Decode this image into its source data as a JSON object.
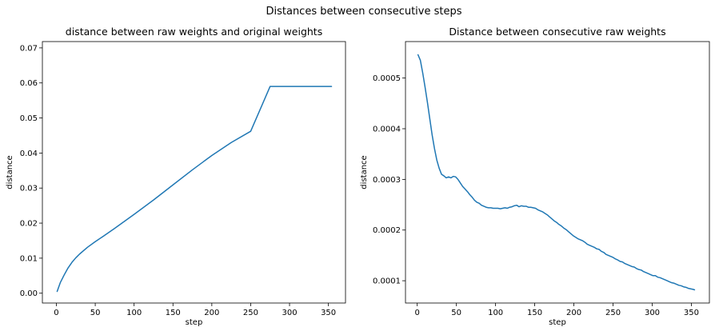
{
  "figure": {
    "suptitle": "Distances between consecutive steps"
  },
  "chart_data": [
    {
      "type": "line",
      "title": "distance between raw weights and original weights",
      "xlabel": "step",
      "ylabel": "distance",
      "xlim": [
        -18,
        372
      ],
      "ylim": [
        -0.0028,
        0.0718
      ],
      "xticks": [
        0,
        50,
        100,
        150,
        200,
        250,
        300,
        350
      ],
      "xtick_labels": [
        "0",
        "50",
        "100",
        "150",
        "200",
        "250",
        "300",
        "350"
      ],
      "yticks": [
        0.0,
        0.01,
        0.02,
        0.03,
        0.04,
        0.05,
        0.06,
        0.07
      ],
      "ytick_labels": [
        "0.00",
        "0.01",
        "0.02",
        "0.03",
        "0.04",
        "0.05",
        "0.06",
        "0.07"
      ],
      "grid": false,
      "line_color": "#1f77b4",
      "series": [
        {
          "x": [
            1,
            5,
            10,
            15,
            20,
            25,
            30,
            40,
            50,
            60,
            75,
            100,
            125,
            150,
            175,
            200,
            225,
            250,
            275,
            300,
            325,
            354
          ],
          "y": [
            0.0005,
            0.003,
            0.0052,
            0.0072,
            0.0088,
            0.0101,
            0.0112,
            0.0131,
            0.0147,
            0.0162,
            0.0185,
            0.0225,
            0.0266,
            0.0309,
            0.0352,
            0.0393,
            0.043,
            0.0462,
            0.059,
            0.059,
            0.059,
            0.059
          ]
        }
      ]
    },
    {
      "type": "line",
      "title": "Distance between consecutive raw weights",
      "xlabel": "step",
      "ylabel": "distance",
      "xlim": [
        -15,
        373
      ],
      "ylim": [
        5.6e-05,
        0.000572
      ],
      "xticks": [
        0,
        50,
        100,
        150,
        200,
        250,
        300,
        350
      ],
      "xtick_labels": [
        "0",
        "50",
        "100",
        "150",
        "200",
        "250",
        "300",
        "350"
      ],
      "yticks": [
        0.0001,
        0.0002,
        0.0003,
        0.0004,
        0.0005
      ],
      "ytick_labels": [
        "0.0001",
        "0.0002",
        "0.0003",
        "0.0004",
        "0.0005"
      ],
      "grid": false,
      "line_color": "#1f77b4",
      "series": [
        {
          "x": [
            1,
            4,
            7,
            10,
            13,
            16,
            19,
            22,
            25,
            28,
            31,
            34,
            37,
            40,
            43,
            46,
            49,
            52,
            55,
            58,
            61,
            64,
            67,
            70,
            73,
            76,
            79,
            82,
            85,
            88,
            91,
            94,
            97,
            100,
            103,
            106,
            109,
            112,
            115,
            118,
            121,
            124,
            127,
            130,
            133,
            136,
            139,
            142,
            145,
            148,
            151,
            154,
            157,
            160,
            163,
            166,
            169,
            172,
            175,
            178,
            181,
            184,
            187,
            190,
            193,
            196,
            199,
            202,
            205,
            208,
            211,
            214,
            217,
            220,
            223,
            226,
            229,
            232,
            235,
            238,
            241,
            244,
            247,
            250,
            253,
            256,
            259,
            262,
            265,
            268,
            271,
            274,
            277,
            280,
            283,
            286,
            289,
            292,
            295,
            298,
            301,
            304,
            307,
            310,
            313,
            316,
            319,
            322,
            325,
            328,
            331,
            334,
            337,
            340,
            343,
            346,
            349,
            352,
            354
          ],
          "y": [
            0.000546,
            0.000535,
            0.00051,
            0.000482,
            0.000452,
            0.00042,
            0.000388,
            0.000361,
            0.000338,
            0.000322,
            0.00031,
            0.000307,
            0.000303,
            0.000305,
            0.000303,
            0.000306,
            0.000305,
            0.0003,
            0.000293,
            0.000286,
            0.000281,
            0.000276,
            0.00027,
            0.000265,
            0.000259,
            0.000255,
            0.000253,
            0.000249,
            0.000247,
            0.000245,
            0.000244,
            0.000244,
            0.000243,
            0.000243,
            0.000243,
            0.000242,
            0.000243,
            0.000244,
            0.000243,
            0.000245,
            0.000246,
            0.000248,
            0.000249,
            0.000246,
            0.000248,
            0.000247,
            0.000247,
            0.000245,
            0.000245,
            0.000244,
            0.000243,
            0.00024,
            0.000238,
            0.000236,
            0.000233,
            0.00023,
            0.000226,
            0.000222,
            0.000218,
            0.000215,
            0.000211,
            0.000208,
            0.000204,
            0.000201,
            0.000197,
            0.000193,
            0.000189,
            0.000186,
            0.000183,
            0.000181,
            0.000179,
            0.000176,
            0.000172,
            0.00017,
            0.000168,
            0.000166,
            0.000163,
            0.000162,
            0.000158,
            0.000156,
            0.000152,
            0.00015,
            0.000148,
            0.000146,
            0.000143,
            0.000141,
            0.000138,
            0.000137,
            0.000134,
            0.000132,
            0.00013,
            0.000128,
            0.000127,
            0.000124,
            0.000122,
            0.000121,
            0.000118,
            0.000116,
            0.000114,
            0.000112,
            0.00011,
            0.00011,
            0.000107,
            0.000106,
            0.000104,
            0.000102,
            0.0001,
            9.8e-05,
            9.6e-05,
            9.5e-05,
            9.3e-05,
            9.1e-05,
            9e-05,
            8.8e-05,
            8.7e-05,
            8.5e-05,
            8.4e-05,
            8.3e-05,
            8.2e-05
          ]
        }
      ]
    }
  ]
}
